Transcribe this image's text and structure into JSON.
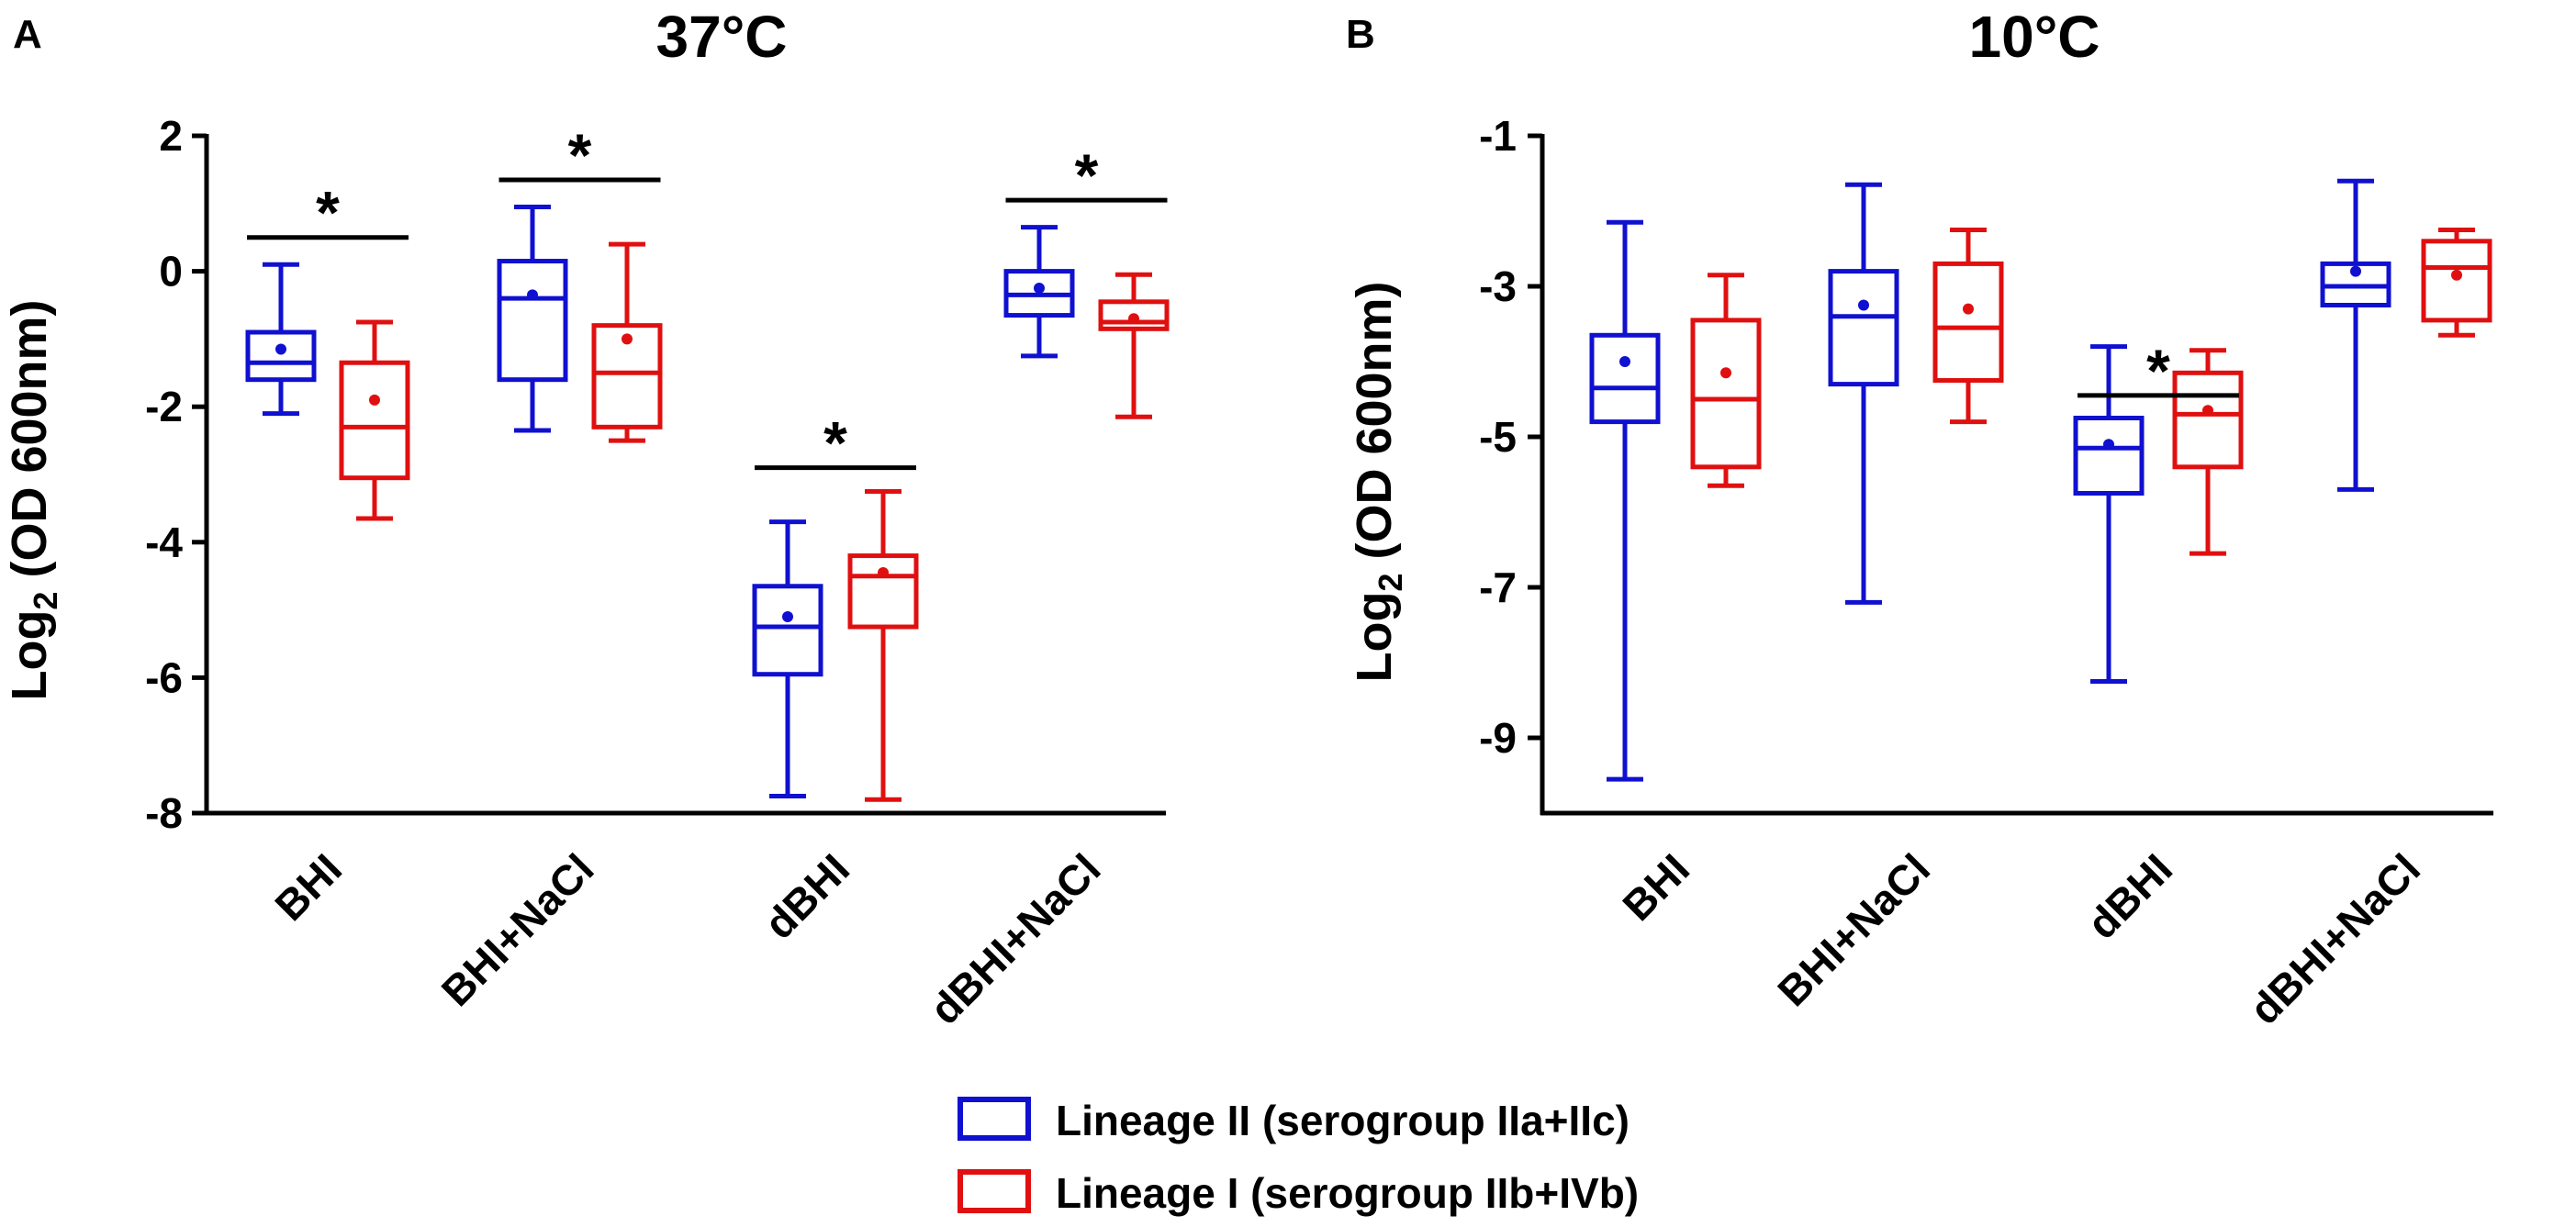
{
  "legend": [
    {
      "name": "Lineage II (serogroup IIa+IIc)",
      "color": "#1010d0"
    },
    {
      "name": "Lineage I (serogroup IIb+IVb)",
      "color": "#e01010"
    }
  ],
  "chart_data": [
    {
      "type": "box",
      "panel": "A",
      "title": "37°C",
      "xlabel": "",
      "ylabel": "Log2 (OD 600nm)",
      "ylabel_main": "Log",
      "ylabel_sub": "2",
      "ylabel_rest": " (OD 600nm)",
      "ylim": [
        -8,
        2
      ],
      "yticks": [
        2,
        0,
        -2,
        -4,
        -6,
        -8
      ],
      "ytick_labels": [
        "2",
        "0",
        "-2",
        "-4",
        "-6",
        "-8"
      ],
      "categories": [
        "BHI",
        "BHI+NaCl",
        "dBHI",
        "dBHI+NaCl"
      ],
      "series": [
        {
          "name": "Lineage II (serogroup IIa+IIc)",
          "color": "#1010d0",
          "boxes": [
            {
              "min": -2.1,
              "q1": -1.6,
              "median": -1.35,
              "q3": -0.9,
              "max": 0.1,
              "mean": -1.15
            },
            {
              "min": -2.35,
              "q1": -1.6,
              "median": -0.4,
              "q3": 0.15,
              "max": 0.95,
              "mean": -0.35
            },
            {
              "min": -7.75,
              "q1": -5.95,
              "median": -5.25,
              "q3": -4.65,
              "max": -3.7,
              "mean": -5.1
            },
            {
              "min": -1.25,
              "q1": -0.65,
              "median": -0.35,
              "q3": 0.0,
              "max": 0.65,
              "mean": -0.25
            }
          ]
        },
        {
          "name": "Lineage I (serogroup IIb+IVb)",
          "color": "#e01010",
          "boxes": [
            {
              "min": -3.65,
              "q1": -3.05,
              "median": -2.3,
              "q3": -1.35,
              "max": -0.75,
              "mean": -1.9
            },
            {
              "min": -2.5,
              "q1": -2.3,
              "median": -1.5,
              "q3": -0.8,
              "max": 0.4,
              "mean": -1.0
            },
            {
              "min": -7.8,
              "q1": -5.25,
              "median": -4.5,
              "q3": -4.2,
              "max": -3.25,
              "mean": -4.45
            },
            {
              "min": -2.15,
              "q1": -0.85,
              "median": -0.75,
              "q3": -0.45,
              "max": -0.05,
              "mean": -0.7
            }
          ]
        }
      ],
      "significance": [
        {
          "category": "BHI",
          "label": "*",
          "y": 0.5
        },
        {
          "category": "BHI+NaCl",
          "label": "*",
          "y": 1.35
        },
        {
          "category": "dBHI",
          "label": "*",
          "y": -2.9
        },
        {
          "category": "dBHI+NaCl",
          "label": "*",
          "y": 1.05
        }
      ]
    },
    {
      "type": "box",
      "panel": "B",
      "title": "10°C",
      "xlabel": "",
      "ylabel": "Log2 (OD 600nm)",
      "ylabel_main": "Log",
      "ylabel_sub": "2",
      "ylabel_rest": " (OD 600nm)",
      "ylim": [
        -10,
        -1
      ],
      "yticks": [
        -1,
        -3,
        -5,
        -7,
        -9
      ],
      "ytick_labels": [
        "-1",
        "-3",
        "-5",
        "-7",
        "-9"
      ],
      "categories": [
        "BHI",
        "BHI+NaCl",
        "dBHI",
        "dBHI+NaCl"
      ],
      "series": [
        {
          "name": "Lineage II (serogroup IIa+IIc)",
          "color": "#1010d0",
          "boxes": [
            {
              "min": -9.55,
              "q1": -4.8,
              "median": -4.35,
              "q3": -3.65,
              "max": -2.15,
              "mean": -4.0
            },
            {
              "min": -7.2,
              "q1": -4.3,
              "median": -3.4,
              "q3": -2.8,
              "max": -1.65,
              "mean": -3.25
            },
            {
              "min": -8.25,
              "q1": -5.75,
              "median": -5.15,
              "q3": -4.75,
              "max": -3.8,
              "mean": -5.1
            },
            {
              "min": -5.7,
              "q1": -3.25,
              "median": -3.0,
              "q3": -2.7,
              "max": -1.6,
              "mean": -2.8
            }
          ]
        },
        {
          "name": "Lineage I (serogroup IIb+IVb)",
          "color": "#e01010",
          "boxes": [
            {
              "min": -5.65,
              "q1": -5.4,
              "median": -4.5,
              "q3": -3.45,
              "max": -2.85,
              "mean": -4.15
            },
            {
              "min": -4.8,
              "q1": -4.25,
              "median": -3.55,
              "q3": -2.7,
              "max": -2.25,
              "mean": -3.3
            },
            {
              "min": -6.55,
              "q1": -5.4,
              "median": -4.7,
              "q3": -4.15,
              "max": -3.85,
              "mean": -4.65
            },
            {
              "min": -3.65,
              "q1": -3.45,
              "median": -2.75,
              "q3": -2.4,
              "max": -2.25,
              "mean": -2.85
            }
          ]
        }
      ],
      "significance": [
        {
          "category": "dBHI",
          "label": "*",
          "y": -4.45
        }
      ]
    }
  ]
}
